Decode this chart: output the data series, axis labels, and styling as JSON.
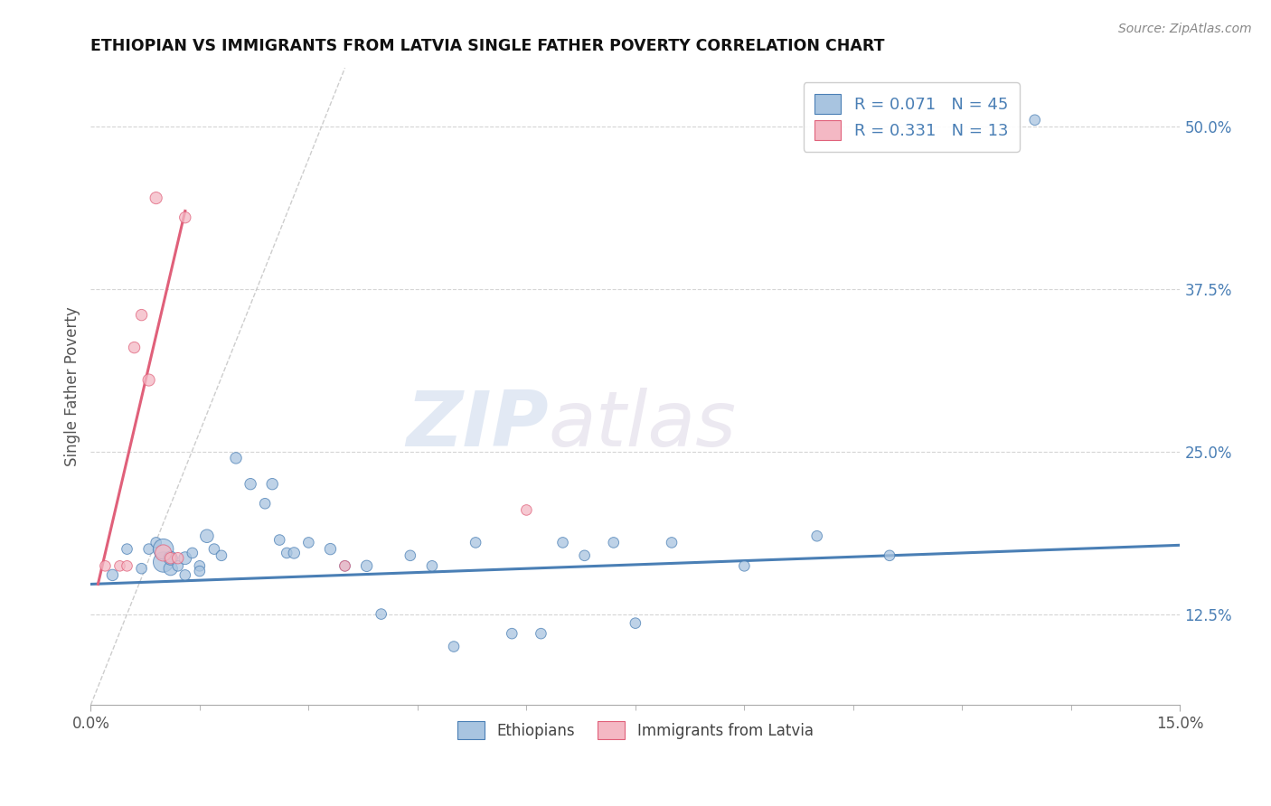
{
  "title": "ETHIOPIAN VS IMMIGRANTS FROM LATVIA SINGLE FATHER POVERTY CORRELATION CHART",
  "source": "Source: ZipAtlas.com",
  "ylabel": "Single Father Poverty",
  "xlim": [
    0,
    0.15
  ],
  "ylim": [
    0.055,
    0.545
  ],
  "xtick_positions": [
    0.0,
    0.15
  ],
  "xtick_labels": [
    "0.0%",
    "15.0%"
  ],
  "ytick_vals_right": [
    0.125,
    0.25,
    0.375,
    0.5
  ],
  "ytick_labels_right": [
    "12.5%",
    "25.0%",
    "37.5%",
    "50.0%"
  ],
  "blue_R": "0.071",
  "blue_N": "45",
  "pink_R": "0.331",
  "pink_N": "13",
  "blue_color": "#a8c4e0",
  "pink_color": "#f4b8c4",
  "blue_line_color": "#4a7fb5",
  "pink_line_color": "#e0607a",
  "grid_color": "#d5d5d5",
  "watermark_zip": "ZIP",
  "watermark_atlas": "atlas",
  "legend_label_blue": "Ethiopians",
  "legend_label_pink": "Immigrants from Latvia",
  "blue_scatter_x": [
    0.003,
    0.005,
    0.007,
    0.008,
    0.009,
    0.01,
    0.01,
    0.011,
    0.011,
    0.012,
    0.013,
    0.013,
    0.014,
    0.015,
    0.015,
    0.016,
    0.017,
    0.018,
    0.02,
    0.022,
    0.024,
    0.025,
    0.026,
    0.027,
    0.028,
    0.03,
    0.033,
    0.035,
    0.038,
    0.04,
    0.044,
    0.047,
    0.05,
    0.053,
    0.058,
    0.062,
    0.065,
    0.068,
    0.072,
    0.075,
    0.08,
    0.09,
    0.1,
    0.11,
    0.13
  ],
  "blue_scatter_y": [
    0.155,
    0.175,
    0.16,
    0.175,
    0.18,
    0.165,
    0.175,
    0.16,
    0.168,
    0.162,
    0.155,
    0.168,
    0.172,
    0.162,
    0.158,
    0.185,
    0.175,
    0.17,
    0.245,
    0.225,
    0.21,
    0.225,
    0.182,
    0.172,
    0.172,
    0.18,
    0.175,
    0.162,
    0.162,
    0.125,
    0.17,
    0.162,
    0.1,
    0.18,
    0.11,
    0.11,
    0.18,
    0.17,
    0.18,
    0.118,
    0.18,
    0.162,
    0.185,
    0.17,
    0.505
  ],
  "blue_scatter_sizes": [
    80,
    70,
    70,
    70,
    70,
    260,
    260,
    120,
    120,
    70,
    70,
    100,
    70,
    70,
    70,
    110,
    70,
    70,
    80,
    80,
    70,
    80,
    70,
    70,
    80,
    70,
    80,
    70,
    80,
    70,
    70,
    70,
    70,
    70,
    70,
    70,
    70,
    70,
    70,
    70,
    70,
    70,
    70,
    70,
    70
  ],
  "pink_scatter_x": [
    0.002,
    0.004,
    0.005,
    0.006,
    0.007,
    0.008,
    0.009,
    0.01,
    0.011,
    0.012,
    0.013,
    0.035,
    0.06
  ],
  "pink_scatter_y": [
    0.162,
    0.162,
    0.162,
    0.33,
    0.355,
    0.305,
    0.445,
    0.172,
    0.168,
    0.168,
    0.43,
    0.162,
    0.205
  ],
  "pink_scatter_sizes": [
    70,
    70,
    70,
    80,
    80,
    90,
    90,
    170,
    80,
    80,
    80,
    70,
    70
  ],
  "blue_trend_x": [
    0.0,
    0.15
  ],
  "blue_trend_y": [
    0.148,
    0.178
  ],
  "pink_trend_x": [
    0.001,
    0.013
  ],
  "pink_trend_y": [
    0.148,
    0.435
  ],
  "ref_line_x": [
    0.0,
    0.035
  ],
  "ref_line_y": [
    0.055,
    0.545
  ]
}
